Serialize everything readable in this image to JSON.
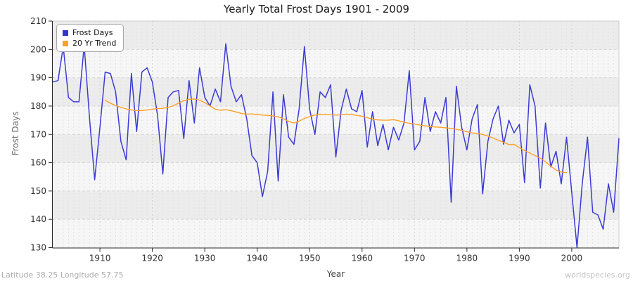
{
  "header": {
    "title": "Yearly Total Frost Days 1901 - 2009"
  },
  "axes": {
    "y_label": "Frost Days",
    "x_label": "Year"
  },
  "legend": {
    "items": [
      {
        "label": "Frost Days",
        "color": "#3434d0"
      },
      {
        "label": "20 Yr Trend",
        "color": "#ffa028"
      }
    ]
  },
  "footer": {
    "left": "Latitude 38.25 Longitude 57.75",
    "right": "worldspecies.org"
  },
  "chart_data": {
    "type": "line",
    "title": "Yearly Total Frost Days 1901 - 2009",
    "xlabel": "Year",
    "ylabel": "Frost Days",
    "xlim": [
      1901,
      2009
    ],
    "ylim": [
      130,
      210
    ],
    "x_ticks": [
      1910,
      1920,
      1930,
      1940,
      1950,
      1960,
      1970,
      1980,
      1990,
      2000
    ],
    "y_ticks": [
      130,
      140,
      150,
      160,
      170,
      180,
      190,
      200,
      210
    ],
    "grid": "yearly dashed vertical lines, dashed horizontal lines every 10, alternating gray bands",
    "legend_position": "top-left",
    "colors": {
      "band_dark": "#ececec",
      "band_light": "#f6f6f6",
      "grid_vertical": "#e2e2e2",
      "grid_vertical_decade": "#d2d2d2",
      "grid_horizontal": "#d6d6d6",
      "axis": "#2a2a2a",
      "tick_label": "#333333",
      "frame": "#cccccc"
    },
    "series": [
      {
        "name": "Frost Days",
        "color": "#3b3bd4",
        "x_start": 1901,
        "values": [
          188.5,
          189,
          201,
          183,
          181.5,
          181.5,
          201.5,
          176,
          154,
          172.5,
          192,
          191.5,
          185,
          167.5,
          161,
          191.5,
          171,
          192,
          193.5,
          188.5,
          176.5,
          156,
          183,
          185,
          185.5,
          168.5,
          189,
          174,
          193.5,
          183,
          180,
          186,
          181.5,
          202,
          187,
          181.5,
          184,
          175.5,
          162.5,
          160,
          148,
          157,
          185,
          153.5,
          184,
          169,
          166.5,
          179,
          201,
          179,
          170,
          185,
          183,
          187.5,
          162,
          178.5,
          186,
          179,
          178,
          185.5,
          165.5,
          178,
          166,
          173.5,
          164.5,
          172.5,
          168,
          174,
          192.5,
          164.5,
          167.5,
          183,
          171,
          178,
          174,
          183,
          146,
          187,
          172.5,
          164.5,
          175.5,
          180.5,
          149,
          167.5,
          175.5,
          180,
          166.5,
          175,
          170.5,
          173.5,
          153,
          187.5,
          180,
          151,
          174,
          158.5,
          164,
          152.5,
          169,
          149.5,
          130,
          152.5,
          169,
          142.5,
          141.5,
          136.5,
          152.5,
          142.5,
          168.5
        ]
      },
      {
        "name": "20 Yr Trend",
        "color": "#ffa028",
        "x_start": 1911,
        "values": [
          182,
          181,
          180.2,
          179.5,
          179,
          178.6,
          178.4,
          178.4,
          178.6,
          178.9,
          179.1,
          179.2,
          179.5,
          180.1,
          181,
          181.9,
          182.4,
          182.5,
          182.1,
          181.2,
          180,
          178.9,
          178.5,
          178.7,
          178.4,
          177.9,
          177.4,
          177.1,
          177.2,
          177,
          176.8,
          176.7,
          176.5,
          176.2,
          175.5,
          174.6,
          174,
          174.7,
          175.6,
          176.3,
          176.8,
          177,
          177,
          176.9,
          176.8,
          176.9,
          177.1,
          177,
          176.7,
          176.4,
          175.9,
          175.4,
          175.1,
          175,
          175,
          175.2,
          174.8,
          174.3,
          173.9,
          173.6,
          173.3,
          173,
          172.8,
          172.6,
          172.5,
          172.3,
          172.1,
          171.8,
          171.4,
          170.9,
          170.5,
          170.3,
          170,
          169.4,
          168.7,
          167.9,
          167.2,
          166.4,
          166.5,
          165.3,
          164.3,
          163.4,
          162.5,
          161.6,
          160.3,
          158.7,
          157.4,
          156.7,
          156.5
        ]
      }
    ]
  }
}
